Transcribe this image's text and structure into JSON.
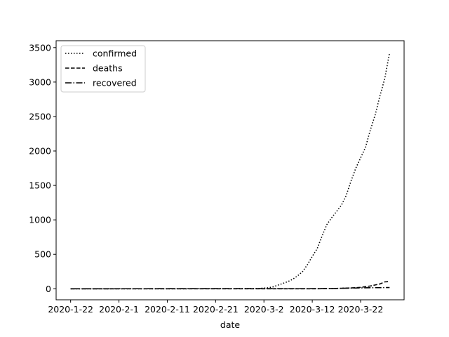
{
  "chart_data": {
    "type": "line",
    "xlabel": "date",
    "ylabel": "",
    "title": "",
    "x_start": "2020-1-22",
    "x_end": "2020-3-28",
    "x_ticks": [
      "2020-1-22",
      "2020-2-1",
      "2020-2-11",
      "2020-2-21",
      "2020-3-2",
      "2020-3-12",
      "2020-3-22"
    ],
    "y_ticks": [
      0,
      500,
      1000,
      1500,
      2000,
      2500,
      3000,
      3500
    ],
    "ylim": [
      -160,
      3600
    ],
    "xlim": [
      "2020-1-19",
      "2020-3-31"
    ],
    "grid": false,
    "legend_position": "top-left",
    "series": [
      {
        "name": "confirmed",
        "style": "dotted",
        "points": [
          [
            "2020-1-22",
            0
          ],
          [
            "2020-2-10",
            0
          ],
          [
            "2020-2-24",
            1
          ],
          [
            "2020-3-1",
            5
          ],
          [
            "2020-3-3",
            15
          ],
          [
            "2020-3-4",
            30
          ],
          [
            "2020-3-5",
            55
          ],
          [
            "2020-3-6",
            80
          ],
          [
            "2020-3-7",
            105
          ],
          [
            "2020-3-8",
            140
          ],
          [
            "2020-3-9",
            190
          ],
          [
            "2020-3-10",
            250
          ],
          [
            "2020-3-11",
            350
          ],
          [
            "2020-3-12",
            470
          ],
          [
            "2020-3-13",
            580
          ],
          [
            "2020-3-14",
            760
          ],
          [
            "2020-3-15",
            930
          ],
          [
            "2020-3-16",
            1030
          ],
          [
            "2020-3-17",
            1120
          ],
          [
            "2020-3-18",
            1210
          ],
          [
            "2020-3-19",
            1350
          ],
          [
            "2020-3-20",
            1560
          ],
          [
            "2020-3-21",
            1750
          ],
          [
            "2020-3-22",
            1900
          ],
          [
            "2020-3-23",
            2050
          ],
          [
            "2020-3-24",
            2300
          ],
          [
            "2020-3-25",
            2520
          ],
          [
            "2020-3-26",
            2800
          ],
          [
            "2020-3-27",
            3050
          ],
          [
            "2020-3-28",
            3430
          ]
        ]
      },
      {
        "name": "deaths",
        "style": "dashed",
        "points": [
          [
            "2020-1-22",
            0
          ],
          [
            "2020-3-13",
            0
          ],
          [
            "2020-3-17",
            5
          ],
          [
            "2020-3-20",
            12
          ],
          [
            "2020-3-22",
            20
          ],
          [
            "2020-3-24",
            40
          ],
          [
            "2020-3-26",
            70
          ],
          [
            "2020-3-27",
            100
          ],
          [
            "2020-3-28",
            105
          ]
        ]
      },
      {
        "name": "recovered",
        "style": "dashdot",
        "points": [
          [
            "2020-1-22",
            0
          ],
          [
            "2020-3-15",
            2
          ],
          [
            "2020-3-20",
            10
          ],
          [
            "2020-3-24",
            15
          ],
          [
            "2020-3-28",
            18
          ]
        ]
      }
    ]
  }
}
